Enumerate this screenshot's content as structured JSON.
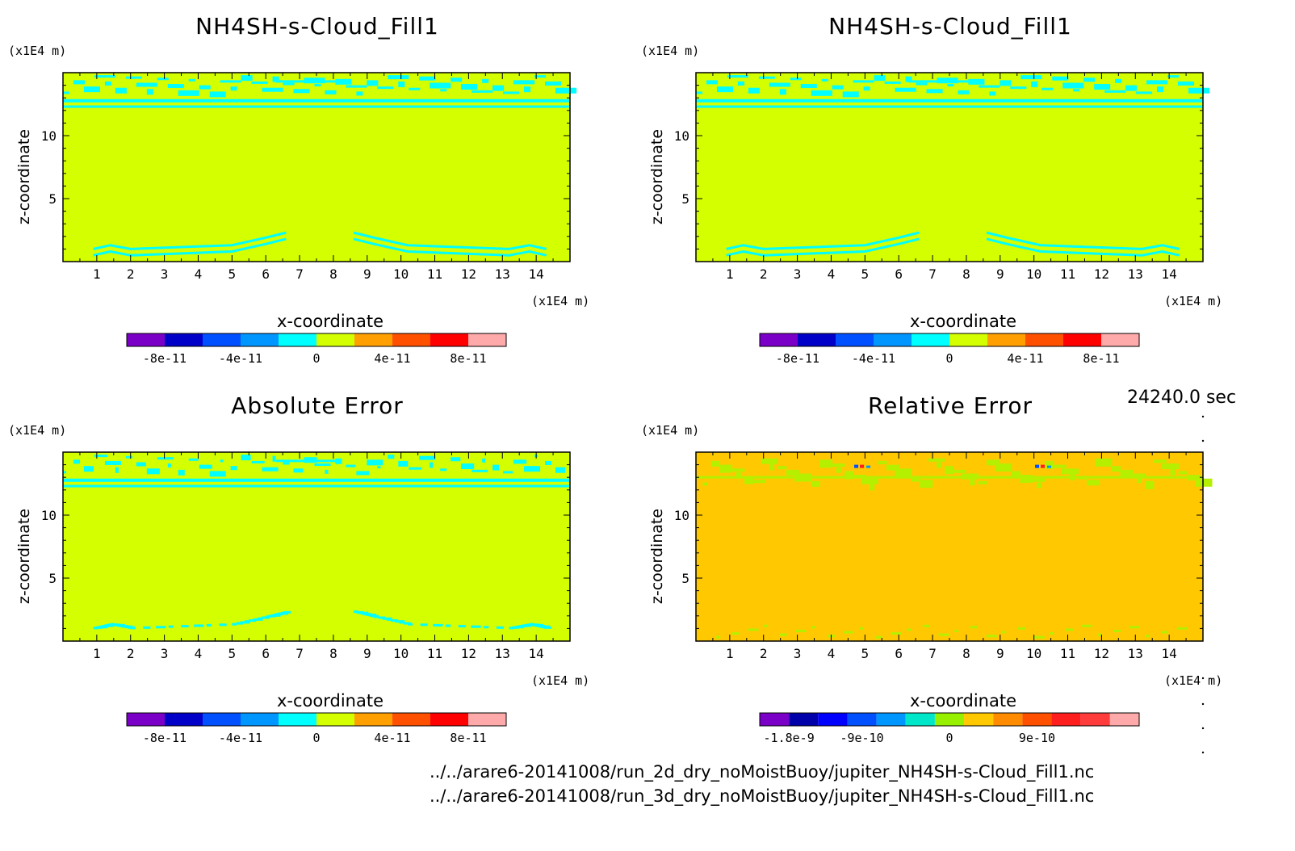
{
  "time_label": "24240.0 sec",
  "file_paths": [
    "../../arare6-20141008/run_2d_dry_noMoistBuoy/jupiter_NH4SH-s-Cloud_Fill1.nc",
    "../../arare6-20141008/run_3d_dry_noMoistBuoy/jupiter_NH4SH-s-Cloud_Fill1.nc"
  ],
  "colors": {
    "background_yellow": "#d4ff00",
    "cyan": "#00ffff",
    "orange_field": "#ffc800",
    "green_patch": "#b4f000"
  },
  "chart_data": [
    {
      "type": "heatmap",
      "title": "NH4SH-s-Cloud_Fill1",
      "xlabel": "x-coordinate",
      "ylabel": "z-coordinate",
      "x_unit": "(x1E4 m)",
      "y_unit": "(x1E4 m)",
      "xlim": [
        0,
        15
      ],
      "ylim": [
        0,
        15
      ],
      "x_ticks": [
        "1",
        "2",
        "3",
        "4",
        "5",
        "6",
        "7",
        "8",
        "9",
        "10",
        "11",
        "12",
        "13",
        "14"
      ],
      "y_ticks": [
        "5",
        "10"
      ],
      "colorbar": {
        "colors": [
          "#7a00c8",
          "#0000c8",
          "#0050ff",
          "#0096ff",
          "#00ffff",
          "#d4ff00",
          "#ffa000",
          "#ff5000",
          "#ff0000",
          "#ffaaaa"
        ],
        "labels": [
          "-8e-11",
          "-4e-11",
          "0",
          "4e-11",
          "8e-11"
        ]
      },
      "pattern": "symmetric"
    },
    {
      "type": "heatmap",
      "title": "NH4SH-s-Cloud_Fill1",
      "xlabel": "x-coordinate",
      "ylabel": "z-coordinate",
      "x_unit": "(x1E4 m)",
      "y_unit": "(x1E4 m)",
      "xlim": [
        0,
        15
      ],
      "ylim": [
        0,
        15
      ],
      "x_ticks": [
        "1",
        "2",
        "3",
        "4",
        "5",
        "6",
        "7",
        "8",
        "9",
        "10",
        "11",
        "12",
        "13",
        "14"
      ],
      "y_ticks": [
        "5",
        "10"
      ],
      "colorbar": {
        "colors": [
          "#7a00c8",
          "#0000c8",
          "#0050ff",
          "#0096ff",
          "#00ffff",
          "#d4ff00",
          "#ffa000",
          "#ff5000",
          "#ff0000",
          "#ffaaaa"
        ],
        "labels": [
          "-8e-11",
          "-4e-11",
          "0",
          "4e-11",
          "8e-11"
        ]
      },
      "pattern": "symmetric"
    },
    {
      "type": "heatmap",
      "title": "Absolute Error",
      "xlabel": "x-coordinate",
      "ylabel": "z-coordinate",
      "x_unit": "(x1E4 m)",
      "y_unit": "(x1E4 m)",
      "xlim": [
        0,
        15
      ],
      "ylim": [
        0,
        15
      ],
      "x_ticks": [
        "1",
        "2",
        "3",
        "4",
        "5",
        "6",
        "7",
        "8",
        "9",
        "10",
        "11",
        "12",
        "13",
        "14"
      ],
      "y_ticks": [
        "5",
        "10"
      ],
      "colorbar": {
        "colors": [
          "#7a00c8",
          "#0000c8",
          "#0050ff",
          "#0096ff",
          "#00ffff",
          "#d4ff00",
          "#ffa000",
          "#ff5000",
          "#ff0000",
          "#ffaaaa"
        ],
        "labels": [
          "-8e-11",
          "-4e-11",
          "0",
          "4e-11",
          "8e-11"
        ]
      },
      "pattern": "noisy"
    },
    {
      "type": "heatmap",
      "title": "Relative Error",
      "xlabel": "x-coordinate",
      "ylabel": "z-coordinate",
      "x_unit": "(x1E4 m)",
      "y_unit": "(x1E4 m)",
      "xlim": [
        0,
        15
      ],
      "ylim": [
        0,
        15
      ],
      "x_ticks": [
        "1",
        "2",
        "3",
        "4",
        "5",
        "6",
        "7",
        "8",
        "9",
        "10",
        "11",
        "12",
        "13",
        "14"
      ],
      "y_ticks": [
        "5",
        "10"
      ],
      "colorbar": {
        "colors": [
          "#7a00c8",
          "#0000aa",
          "#0000ff",
          "#0050ff",
          "#0096ff",
          "#00e6c8",
          "#96f000",
          "#ffc800",
          "#ff8c00",
          "#ff5000",
          "#ff1e1e",
          "#ff3c3c",
          "#ffaaaa"
        ],
        "labels": [
          "-1.8e-9",
          "-9e-10",
          "0",
          "9e-10"
        ]
      },
      "pattern": "relative"
    }
  ]
}
